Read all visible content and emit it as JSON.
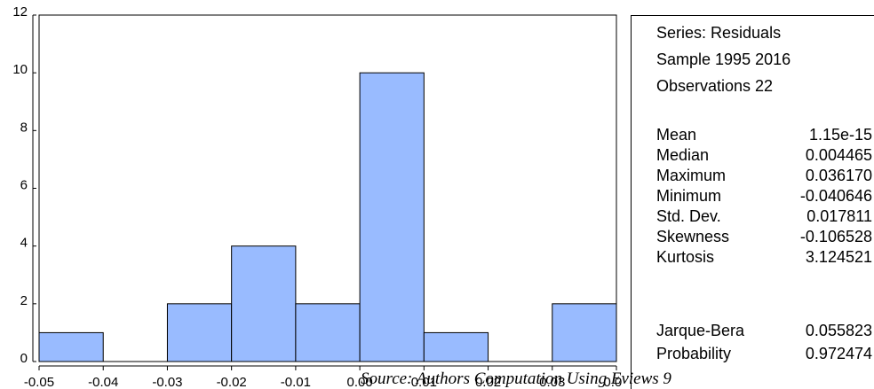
{
  "chart_data": {
    "type": "bar",
    "title": "",
    "xlabel": "",
    "ylabel": "",
    "bins": [
      {
        "from": -0.05,
        "to": -0.04,
        "count": 1
      },
      {
        "from": -0.04,
        "to": -0.03,
        "count": 0
      },
      {
        "from": -0.03,
        "to": -0.02,
        "count": 2
      },
      {
        "from": -0.02,
        "to": -0.01,
        "count": 4
      },
      {
        "from": -0.01,
        "to": 0.0,
        "count": 2
      },
      {
        "from": 0.0,
        "to": 0.01,
        "count": 10
      },
      {
        "from": 0.01,
        "to": 0.02,
        "count": 1
      },
      {
        "from": 0.02,
        "to": 0.03,
        "count": 0
      },
      {
        "from": 0.03,
        "to": 0.04,
        "count": 2
      }
    ],
    "xlim": [
      -0.05,
      0.04
    ],
    "ylim": [
      0,
      12
    ],
    "x_ticks": [
      "-0.05",
      "-0.04",
      "-0.03",
      "-0.02",
      "-0.01",
      "0.00",
      "0.01",
      "0.02",
      "0.03",
      "0.04"
    ],
    "y_ticks": [
      "0",
      "2",
      "4",
      "6",
      "8",
      "10",
      "12"
    ],
    "bar_color": "#99bbff",
    "grid": false
  },
  "stats_panel": {
    "series": "Series: Residuals",
    "sample": "Sample 1995 2016",
    "observations": "Observations 22",
    "rows": [
      {
        "label": "Mean",
        "value": "1.15e-15"
      },
      {
        "label": "Median",
        "value": "0.004465"
      },
      {
        "label": "Maximum",
        "value": "0.036170"
      },
      {
        "label": "Minimum",
        "value": "-0.040646"
      },
      {
        "label": "Std. Dev.",
        "value": "0.017811"
      },
      {
        "label": "Skewness",
        "value": "-0.106528"
      },
      {
        "label": "Kurtosis",
        "value": "3.124521"
      }
    ],
    "test_rows": [
      {
        "label": "Jarque-Bera",
        "value": "0.055823"
      },
      {
        "label": "Probability",
        "value": "0.972474"
      }
    ]
  },
  "source_note": "Source: Authors Computation Using Eviews 9"
}
